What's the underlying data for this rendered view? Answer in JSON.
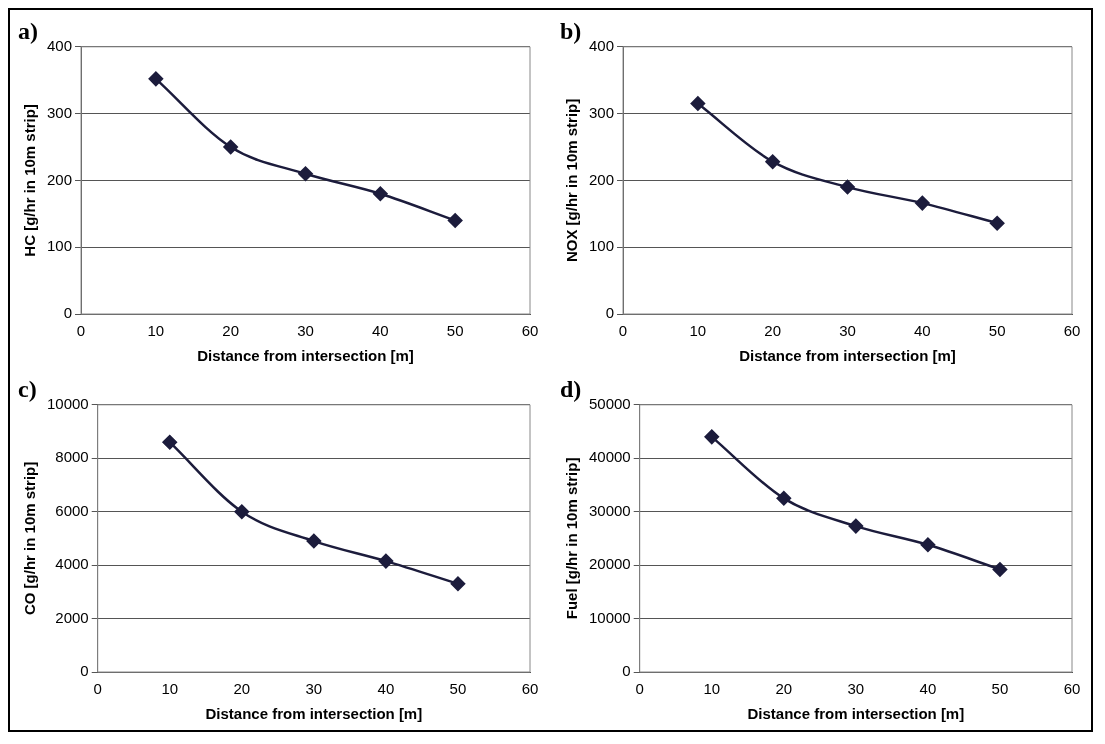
{
  "chart_data": [
    {
      "type": "line",
      "title": "a)",
      "xlabel": "Distance from intersection [m]",
      "ylabel": "HC [g/hr in 10m strip]",
      "x": [
        10,
        20,
        30,
        40,
        50
      ],
      "series": [
        {
          "color": "#1c1c3c",
          "values": [
            352,
            250,
            210,
            180,
            140
          ]
        }
      ],
      "xlim": [
        0,
        60
      ],
      "xticks": [
        0,
        10,
        20,
        30,
        40,
        50,
        60
      ],
      "ylim": [
        0,
        400
      ],
      "yticks": [
        0,
        100,
        200,
        300,
        400
      ],
      "grid": "y",
      "marker": "diamond",
      "line_style": "solid"
    },
    {
      "type": "line",
      "title": "b)",
      "xlabel": "Distance from intersection [m]",
      "ylabel": "NOX [g/hr in 10m strip]",
      "x": [
        10,
        20,
        30,
        40,
        50
      ],
      "series": [
        {
          "color": "#1c1c3c",
          "values": [
            315,
            228,
            190,
            166,
            136
          ]
        }
      ],
      "xlim": [
        0,
        60
      ],
      "xticks": [
        0,
        10,
        20,
        30,
        40,
        50,
        60
      ],
      "ylim": [
        0,
        400
      ],
      "yticks": [
        0,
        100,
        200,
        300,
        400
      ],
      "grid": "y",
      "marker": "diamond",
      "line_style": "solid"
    },
    {
      "type": "line",
      "title": "c)",
      "xlabel": "Distance from intersection [m]",
      "ylabel": "CO [g/hr in 10m strip]",
      "x": [
        10,
        20,
        30,
        40,
        50
      ],
      "series": [
        {
          "color": "#1c1c3c",
          "values": [
            8600,
            6000,
            4900,
            4150,
            3300
          ]
        }
      ],
      "xlim": [
        0,
        60
      ],
      "xticks": [
        0,
        10,
        20,
        30,
        40,
        50,
        60
      ],
      "ylim": [
        0,
        10000
      ],
      "yticks": [
        0,
        2000,
        4000,
        6000,
        8000,
        10000
      ],
      "grid": "y",
      "marker": "diamond",
      "line_style": "solid"
    },
    {
      "type": "line",
      "title": "d)",
      "xlabel": "Distance from intersection [m]",
      "ylabel": "Fuel [g/hr in 10m strip]",
      "x": [
        10,
        20,
        30,
        40,
        50
      ],
      "series": [
        {
          "color": "#1c1c3c",
          "values": [
            44000,
            32500,
            27300,
            23800,
            19200
          ]
        }
      ],
      "xlim": [
        0,
        60
      ],
      "xticks": [
        0,
        10,
        20,
        30,
        40,
        50,
        60
      ],
      "ylim": [
        0,
        50000
      ],
      "yticks": [
        0,
        10000,
        20000,
        30000,
        40000,
        50000
      ],
      "grid": "y",
      "marker": "diamond",
      "line_style": "solid"
    }
  ]
}
